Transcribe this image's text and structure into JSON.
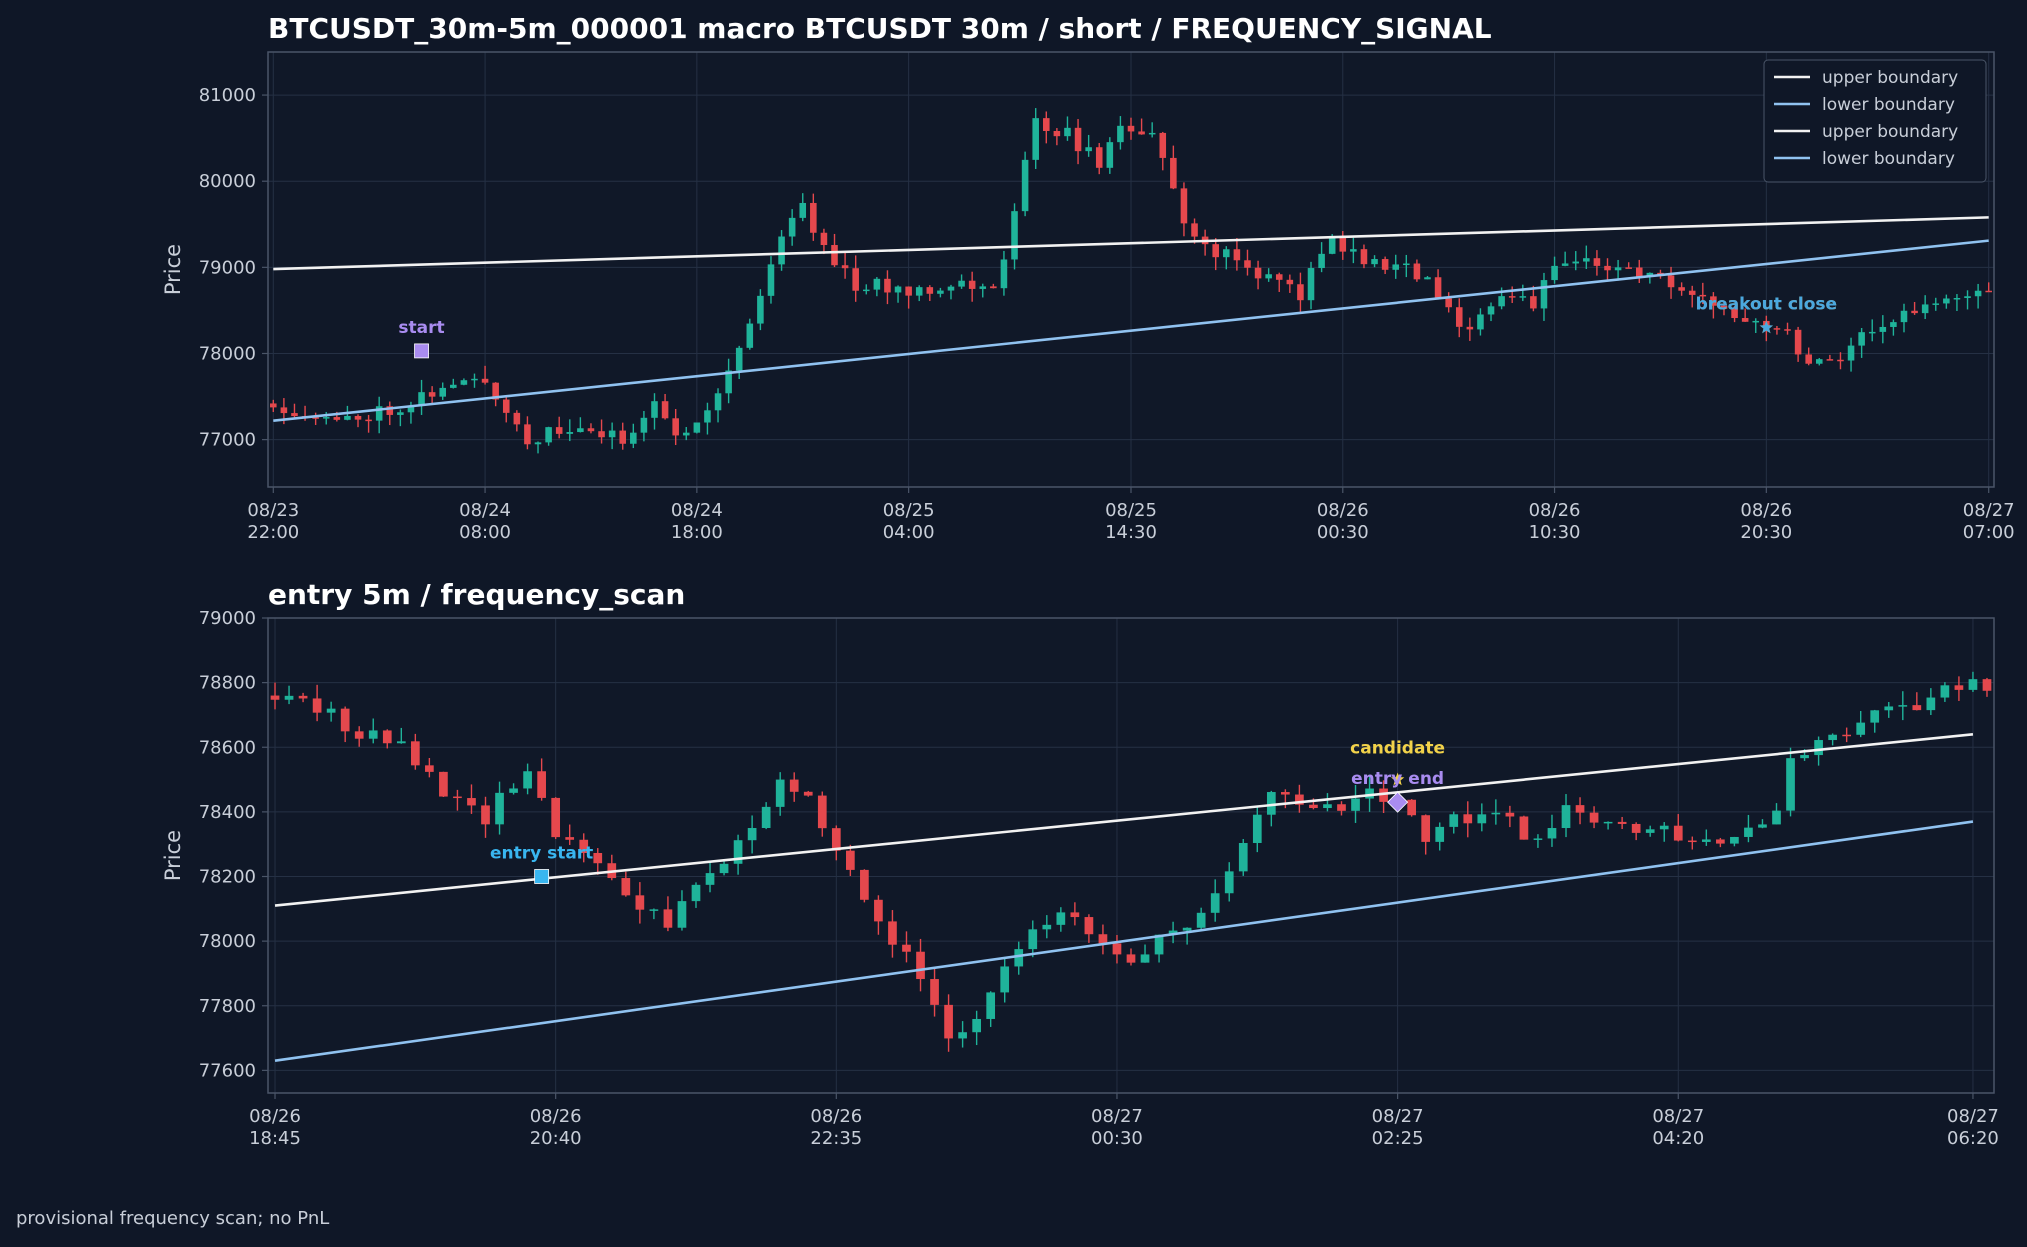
{
  "footer": "provisional frequency scan; no PnL",
  "colors": {
    "background": "#0f1727",
    "plot_bg": "#101828",
    "grid": "#253044",
    "axis": "#4a5568",
    "text": "#c8ced8",
    "title": "#ffffff",
    "bull": "#1fb39a",
    "bear": "#e5484d",
    "upper": "#f2f2f2",
    "lower": "#90c2f0"
  },
  "chart_data": [
    {
      "type": "candlestick",
      "title": "BTCUSDT_30m-5m_000001 macro BTCUSDT 30m / short / FREQUENCY_SIGNAL",
      "ylabel": "Price",
      "ylim": [
        76450,
        81500
      ],
      "yticks": [
        77000,
        78000,
        79000,
        80000,
        81000
      ],
      "xlim": [
        -0.5,
        162.5
      ],
      "xtick_labels": [
        {
          "i": 0,
          "l1": "08/23",
          "l2": "22:00"
        },
        {
          "i": 20,
          "l1": "08/24",
          "l2": "08:00"
        },
        {
          "i": 40,
          "l1": "08/24",
          "l2": "18:00"
        },
        {
          "i": 60,
          "l1": "08/25",
          "l2": "04:00"
        },
        {
          "i": 81,
          "l1": "08/25",
          "l2": "14:30"
        },
        {
          "i": 101,
          "l1": "08/26",
          "l2": "00:30"
        },
        {
          "i": 121,
          "l1": "08/26",
          "l2": "10:30"
        },
        {
          "i": 141,
          "l1": "08/26",
          "l2": "20:30"
        },
        {
          "i": 162,
          "l1": "08/27",
          "l2": "07:00"
        }
      ],
      "legend": {
        "position": "top-right",
        "entries": [
          {
            "label": "upper boundary",
            "color": "#f2f2f2"
          },
          {
            "label": "lower boundary",
            "color": "#90c2f0"
          },
          {
            "label": "upper boundary",
            "color": "#f2f2f2"
          },
          {
            "label": "lower boundary",
            "color": "#90c2f0"
          }
        ]
      },
      "series": [
        {
          "name": "upper boundary",
          "color": "#f2f2f2",
          "points": [
            [
              0,
              78980
            ],
            [
              162,
              79580
            ]
          ]
        },
        {
          "name": "lower boundary",
          "color": "#90c2f0",
          "points": [
            [
              0,
              77220
            ],
            [
              162,
              79310
            ]
          ]
        }
      ],
      "anchors": [
        [
          0,
          77420
        ],
        [
          6,
          77200
        ],
        [
          12,
          77400
        ],
        [
          15,
          77560
        ],
        [
          20,
          77700
        ],
        [
          24,
          77000
        ],
        [
          28,
          77120
        ],
        [
          33,
          77000
        ],
        [
          36,
          77450
        ],
        [
          38,
          77000
        ],
        [
          42,
          77550
        ],
        [
          45,
          78350
        ],
        [
          48,
          79400
        ],
        [
          50,
          79700
        ],
        [
          52,
          79250
        ],
        [
          55,
          78800
        ],
        [
          60,
          78750
        ],
        [
          65,
          78820
        ],
        [
          68,
          78700
        ],
        [
          70,
          79650
        ],
        [
          72,
          80700
        ],
        [
          75,
          80550
        ],
        [
          78,
          80200
        ],
        [
          80,
          80650
        ],
        [
          83,
          80550
        ],
        [
          86,
          79550
        ],
        [
          88,
          79250
        ],
        [
          93,
          78950
        ],
        [
          95,
          78800
        ],
        [
          97,
          78700
        ],
        [
          100,
          79350
        ],
        [
          103,
          79050
        ],
        [
          106,
          79050
        ],
        [
          109,
          78850
        ],
        [
          112,
          78250
        ],
        [
          116,
          78700
        ],
        [
          119,
          78600
        ],
        [
          121,
          78950
        ],
        [
          124,
          79100
        ],
        [
          127,
          78950
        ],
        [
          130,
          78950
        ],
        [
          133,
          78650
        ],
        [
          137,
          78550
        ],
        [
          140,
          78400
        ],
        [
          143,
          78250
        ],
        [
          145,
          77900
        ],
        [
          148,
          78000
        ],
        [
          151,
          78300
        ],
        [
          154,
          78450
        ],
        [
          158,
          78600
        ],
        [
          162,
          78700
        ]
      ],
      "markers": [
        {
          "label": "start",
          "type": "square",
          "color": "#a98cf0",
          "label_color": "#a98cf0",
          "x": 14,
          "y": 78030
        },
        {
          "label": "breakout close",
          "type": "star",
          "color": "#e0a020",
          "label_color": "#e0a020",
          "x": 141,
          "y": 78300
        },
        {
          "label": "breakout close",
          "type": "star",
          "color": "#4aa8e0",
          "label_color": "#4aa8e0",
          "x": 141,
          "y": 78300
        }
      ]
    },
    {
      "type": "candlestick",
      "title": "entry 5m / frequency_scan",
      "ylabel": "Price",
      "ylim": [
        77530,
        79000
      ],
      "yticks": [
        77600,
        77800,
        78000,
        78200,
        78400,
        78600,
        78800,
        79000
      ],
      "xlim": [
        -0.5,
        122.5
      ],
      "xtick_labels": [
        {
          "i": 0,
          "l1": "08/26",
          "l2": "18:45"
        },
        {
          "i": 20,
          "l1": "08/26",
          "l2": "20:40"
        },
        {
          "i": 40,
          "l1": "08/26",
          "l2": "22:35"
        },
        {
          "i": 60,
          "l1": "08/27",
          "l2": "00:30"
        },
        {
          "i": 80,
          "l1": "08/27",
          "l2": "02:25"
        },
        {
          "i": 100,
          "l1": "08/27",
          "l2": "04:20"
        },
        {
          "i": 121,
          "l1": "08/27",
          "l2": "06:20"
        }
      ],
      "series": [
        {
          "name": "upper boundary",
          "color": "#f2f2f2",
          "points": [
            [
              0,
              78110
            ],
            [
              121,
              78640
            ]
          ]
        },
        {
          "name": "lower boundary",
          "color": "#90c2f0",
          "points": [
            [
              0,
              77630
            ],
            [
              121,
              78370
            ]
          ]
        }
      ],
      "anchors": [
        [
          0,
          78760
        ],
        [
          3,
          78720
        ],
        [
          6,
          78650
        ],
        [
          9,
          78600
        ],
        [
          12,
          78450
        ],
        [
          15,
          78380
        ],
        [
          18,
          78550
        ],
        [
          20,
          78300
        ],
        [
          22,
          78280
        ],
        [
          25,
          78150
        ],
        [
          28,
          78050
        ],
        [
          31,
          78200
        ],
        [
          34,
          78350
        ],
        [
          36,
          78500
        ],
        [
          38,
          78450
        ],
        [
          40,
          78300
        ],
        [
          43,
          78050
        ],
        [
          45,
          77950
        ],
        [
          48,
          77720
        ],
        [
          50,
          77750
        ],
        [
          53,
          78000
        ],
        [
          56,
          78080
        ],
        [
          59,
          78000
        ],
        [
          61,
          77950
        ],
        [
          63,
          78000
        ],
        [
          66,
          78080
        ],
        [
          69,
          78300
        ],
        [
          71,
          78480
        ],
        [
          73,
          78400
        ],
        [
          75,
          78400
        ],
        [
          78,
          78480
        ],
        [
          80,
          78430
        ],
        [
          82,
          78300
        ],
        [
          84,
          78380
        ],
        [
          87,
          78400
        ],
        [
          90,
          78300
        ],
        [
          92,
          78400
        ],
        [
          95,
          78380
        ],
        [
          98,
          78350
        ],
        [
          101,
          78320
        ],
        [
          104,
          78330
        ],
        [
          107,
          78380
        ],
        [
          108,
          78550
        ],
        [
          110,
          78600
        ],
        [
          114,
          78700
        ],
        [
          118,
          78750
        ],
        [
          121,
          78800
        ]
      ],
      "markers": [
        {
          "label": "entry start",
          "type": "square",
          "color": "#39b6f0",
          "label_color": "#39b6f0",
          "x": 19,
          "y": 78200
        },
        {
          "label": "candidate",
          "type": "star",
          "color": "#f2d24a",
          "label_color": "#f2d24a",
          "x": 80,
          "y": 78500
        },
        {
          "label": "entry end",
          "type": "diamond",
          "color": "#a98cf0",
          "label_color": "#a98cf0",
          "x": 80,
          "y": 78430
        }
      ]
    }
  ]
}
